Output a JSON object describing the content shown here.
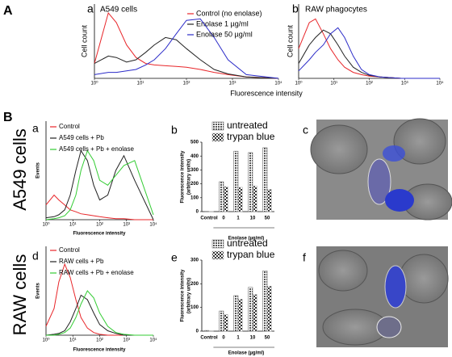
{
  "figure": {
    "section_labels": [
      "A",
      "B"
    ],
    "row_labels": [
      "A549 cells",
      "RAW cells"
    ],
    "image_panels": [
      "c",
      "f"
    ]
  },
  "chart_data": [
    {
      "type": "line",
      "panel": "a",
      "title": "A549 cells",
      "ylabel": "Cell count",
      "xlabel": "Fluorescence intensity",
      "xscale": "log",
      "x": [
        1,
        2,
        3,
        5,
        8,
        13,
        20,
        35,
        60,
        100,
        200,
        400,
        800,
        2000,
        10000
      ],
      "xlim": [
        1,
        10000
      ],
      "ylim": [
        0,
        100
      ],
      "xticks": [
        {
          "value": 1,
          "label": "10⁰"
        },
        {
          "value": 10,
          "label": "10¹"
        },
        {
          "value": 100,
          "label": "10²"
        },
        {
          "value": 1000,
          "label": "10³"
        },
        {
          "value": 10000,
          "label": "10⁴"
        }
      ],
      "series": [
        {
          "name": "Control (no enolase)",
          "color": "#e8262a",
          "values": [
            20,
            88,
            75,
            45,
            28,
            20,
            18,
            17,
            16,
            15,
            12,
            8,
            5,
            2,
            0
          ]
        },
        {
          "name": "Enolase 1 µg/ml",
          "color": "#222222",
          "values": [
            20,
            30,
            28,
            22,
            25,
            35,
            45,
            55,
            52,
            40,
            25,
            12,
            6,
            2,
            0
          ]
        },
        {
          "name": "Enolase 50 µg/ml",
          "color": "#2b2bc8",
          "values": [
            5,
            8,
            8,
            10,
            12,
            18,
            25,
            40,
            60,
            78,
            80,
            55,
            25,
            5,
            0
          ]
        }
      ]
    },
    {
      "type": "line",
      "panel": "b",
      "title": "RAW phagocytes",
      "ylabel": "Cell count",
      "xscale": "log",
      "x": [
        1,
        2,
        3,
        5,
        8,
        13,
        20,
        35,
        60,
        100,
        200,
        400,
        800,
        2000,
        10000
      ],
      "xlim": [
        1,
        10000
      ],
      "ylim": [
        0,
        100
      ],
      "xticks": [
        {
          "value": 1,
          "label": "10⁰"
        },
        {
          "value": 10,
          "label": "10¹"
        },
        {
          "value": 100,
          "label": "10²"
        },
        {
          "value": 1000,
          "label": "10³"
        },
        {
          "value": 10000,
          "label": "10⁴"
        }
      ],
      "series": [
        {
          "color": "#e8262a",
          "values": [
            40,
            75,
            80,
            60,
            40,
            25,
            15,
            8,
            5,
            3,
            2,
            1,
            0,
            0,
            0
          ]
        },
        {
          "color": "#222222",
          "values": [
            20,
            45,
            55,
            65,
            60,
            45,
            30,
            15,
            8,
            4,
            2,
            1,
            0,
            0,
            0
          ]
        },
        {
          "color": "#2b2bc8",
          "values": [
            10,
            25,
            35,
            45,
            60,
            68,
            55,
            30,
            12,
            5,
            2,
            1,
            0,
            0,
            0
          ]
        }
      ]
    },
    {
      "type": "line",
      "panel": "a",
      "ylabel": "Events",
      "xlabel": "Fluorescence intensity",
      "xscale": "log",
      "x": [
        1,
        2,
        3,
        5,
        8,
        13,
        20,
        35,
        60,
        100,
        200,
        400,
        800,
        2000,
        10000
      ],
      "xlim": [
        1,
        10000
      ],
      "ylim": [
        0,
        100
      ],
      "xticks": [
        {
          "value": 1,
          "label": "10⁰"
        },
        {
          "value": 10,
          "label": "10¹"
        },
        {
          "value": 100,
          "label": "10²"
        },
        {
          "value": 1000,
          "label": "10³"
        },
        {
          "value": 10000,
          "label": "10⁴"
        }
      ],
      "series": [
        {
          "name": "Control",
          "color": "#e8262a",
          "values": [
            15,
            25,
            20,
            15,
            10,
            8,
            6,
            5,
            4,
            3,
            2,
            1,
            1,
            0,
            0
          ]
        },
        {
          "name": "A549 cells + Pb",
          "color": "#222222",
          "values": [
            2,
            3,
            5,
            10,
            25,
            50,
            70,
            60,
            35,
            20,
            25,
            50,
            65,
            40,
            0
          ]
        },
        {
          "name": "A549 cells + Pb + enolase",
          "color": "#33cc33",
          "values": [
            0,
            1,
            2,
            4,
            10,
            25,
            50,
            70,
            60,
            40,
            35,
            45,
            55,
            60,
            5
          ]
        }
      ]
    },
    {
      "type": "bar",
      "panel": "b",
      "ylabel": [
        "Fluorescence intensity",
        "(arbitrary units)"
      ],
      "xlabel": "Enolase (µg/ml)",
      "categories": [
        "Control",
        "0",
        "1",
        "10",
        "50"
      ],
      "ylim": [
        0,
        500
      ],
      "yticks": [
        0,
        100,
        200,
        300,
        400,
        500
      ],
      "series": [
        {
          "name": "untreated",
          "color": "#7a7a7a",
          "values": [
            2,
            215,
            435,
            425,
            460
          ]
        },
        {
          "name": "trypan blue",
          "color": "#bdbdbd",
          "values": [
            2,
            180,
            175,
            185,
            160
          ]
        }
      ]
    },
    {
      "type": "line",
      "panel": "d",
      "ylabel": "Events",
      "xlabel": "Fluorescence intensity",
      "xscale": "log",
      "x": [
        1,
        2,
        3,
        5,
        8,
        13,
        20,
        35,
        60,
        100,
        200,
        400,
        800,
        2000,
        10000
      ],
      "xlim": [
        1,
        10000
      ],
      "ylim": [
        0,
        100
      ],
      "xticks": [
        {
          "value": 1,
          "label": "10⁰"
        },
        {
          "value": 10,
          "label": "10¹"
        },
        {
          "value": 100,
          "label": "10²"
        },
        {
          "value": 1000,
          "label": "10³"
        },
        {
          "value": 10000,
          "label": "10⁴"
        }
      ],
      "series": [
        {
          "name": "Control",
          "color": "#e8262a",
          "values": [
            10,
            30,
            60,
            80,
            65,
            40,
            20,
            8,
            3,
            1,
            0,
            0,
            0,
            0,
            0
          ]
        },
        {
          "name": "RAW cells + Pb",
          "color": "#222222",
          "values": [
            0,
            1,
            2,
            5,
            15,
            30,
            45,
            40,
            25,
            12,
            5,
            2,
            0,
            0,
            0
          ]
        },
        {
          "name": "RAW cells + Pb + enolase",
          "color": "#33cc33",
          "values": [
            0,
            0,
            1,
            3,
            8,
            20,
            35,
            50,
            42,
            25,
            10,
            3,
            1,
            0,
            0
          ]
        }
      ]
    },
    {
      "type": "bar",
      "panel": "e",
      "ylabel": [
        "Fluorescence intensity",
        "(arbitrary units)"
      ],
      "xlabel": "Enolase (µg/ml)",
      "categories": [
        "Control",
        "0",
        "1",
        "10",
        "50"
      ],
      "ylim": [
        0,
        300
      ],
      "yticks": [
        0,
        100,
        200,
        300
      ],
      "series": [
        {
          "name": "untreated",
          "color": "#7a7a7a",
          "values": [
            3,
            85,
            150,
            185,
            255
          ]
        },
        {
          "name": "trypan blue",
          "color": "#bdbdbd",
          "values": [
            2,
            70,
            135,
            155,
            190
          ]
        }
      ]
    }
  ]
}
